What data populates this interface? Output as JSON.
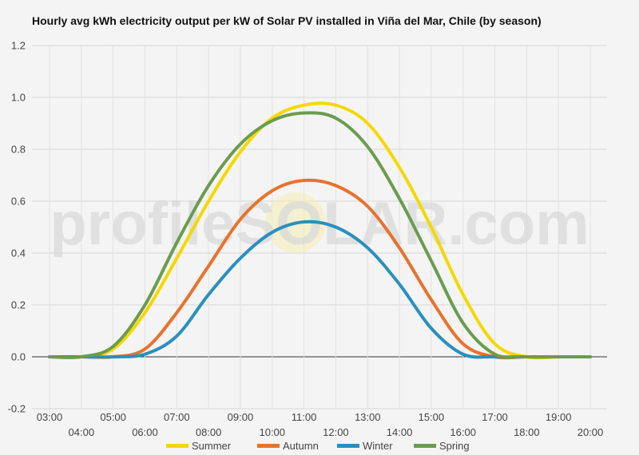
{
  "chart_data": {
    "type": "line",
    "title": "Hourly avg kWh electricity output per kW of Solar PV installed in Viña del Mar, Chile (by season)",
    "watermark": "profileSOLAR.com",
    "x": [
      "03:00",
      "04:00",
      "05:00",
      "06:00",
      "07:00",
      "08:00",
      "09:00",
      "10:00",
      "11:00",
      "12:00",
      "13:00",
      "14:00",
      "15:00",
      "16:00",
      "17:00",
      "18:00",
      "19:00",
      "20:00"
    ],
    "ylim": [
      -0.2,
      1.2
    ],
    "yticks": [
      -0.2,
      0.0,
      0.2,
      0.4,
      0.6,
      0.8,
      1.0,
      1.2
    ],
    "grid": true,
    "legend_position": "bottom",
    "series": [
      {
        "name": "Summer",
        "color": "#f5d800",
        "values": [
          0,
          0,
          0.03,
          0.17,
          0.38,
          0.6,
          0.79,
          0.92,
          0.97,
          0.97,
          0.9,
          0.73,
          0.5,
          0.24,
          0.05,
          0,
          0,
          0
        ]
      },
      {
        "name": "Autumn",
        "color": "#e8722c",
        "values": [
          0,
          0,
          0,
          0.03,
          0.17,
          0.35,
          0.53,
          0.64,
          0.68,
          0.66,
          0.58,
          0.42,
          0.22,
          0.05,
          0,
          0,
          0,
          0
        ]
      },
      {
        "name": "Winter",
        "color": "#2a8fbd",
        "values": [
          0,
          0,
          0,
          0.01,
          0.08,
          0.24,
          0.38,
          0.48,
          0.52,
          0.5,
          0.42,
          0.28,
          0.11,
          0.01,
          0,
          0,
          0,
          0
        ]
      },
      {
        "name": "Spring",
        "color": "#6a9c4e",
        "values": [
          0,
          0,
          0.04,
          0.2,
          0.44,
          0.66,
          0.82,
          0.91,
          0.94,
          0.92,
          0.81,
          0.61,
          0.37,
          0.13,
          0.01,
          0,
          0,
          0
        ]
      }
    ]
  }
}
